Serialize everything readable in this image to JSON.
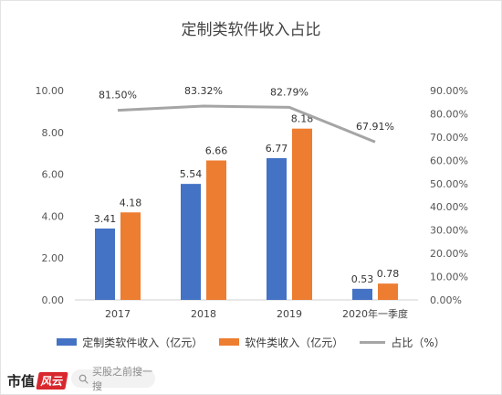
{
  "chart_data": {
    "type": "bar",
    "title": "定制类软件收入占比",
    "categories": [
      "2017",
      "2018",
      "2019",
      "2020年一季度"
    ],
    "series": [
      {
        "name": "定制类软件收入（亿元）",
        "kind": "bar",
        "axis": "left",
        "color": "#4472C4",
        "values": [
          3.41,
          5.54,
          6.77,
          0.53
        ],
        "labels": [
          "3.41",
          "5.54",
          "6.77",
          "0.53"
        ]
      },
      {
        "name": "软件类收入（亿元）",
        "kind": "bar",
        "axis": "left",
        "color": "#ED7D31",
        "values": [
          4.18,
          6.66,
          8.18,
          0.78
        ],
        "labels": [
          "4.18",
          "6.66",
          "8.18",
          "0.78"
        ]
      },
      {
        "name": "占比（%）",
        "kind": "line",
        "axis": "right",
        "color": "#A5A5A5",
        "values": [
          81.5,
          83.32,
          82.79,
          67.91
        ],
        "labels": [
          "81.50%",
          "83.32%",
          "82.79%",
          "67.91%"
        ]
      }
    ],
    "y_left": {
      "min": 0,
      "max": 10,
      "ticks": [
        "0.00",
        "2.00",
        "4.00",
        "6.00",
        "8.00",
        "10.00"
      ]
    },
    "y_right": {
      "min": 0,
      "max": 90,
      "ticks": [
        "0.00%",
        "10.00%",
        "20.00%",
        "30.00%",
        "40.00%",
        "50.00%",
        "60.00%",
        "70.00%",
        "80.00%",
        "90.00%"
      ]
    },
    "grid": false,
    "legend_position": "bottom"
  },
  "footer": {
    "brand": "市值",
    "brand_badge": "风云",
    "search_placeholder": "买股之前搜一搜",
    "search_icon": "search-icon"
  }
}
